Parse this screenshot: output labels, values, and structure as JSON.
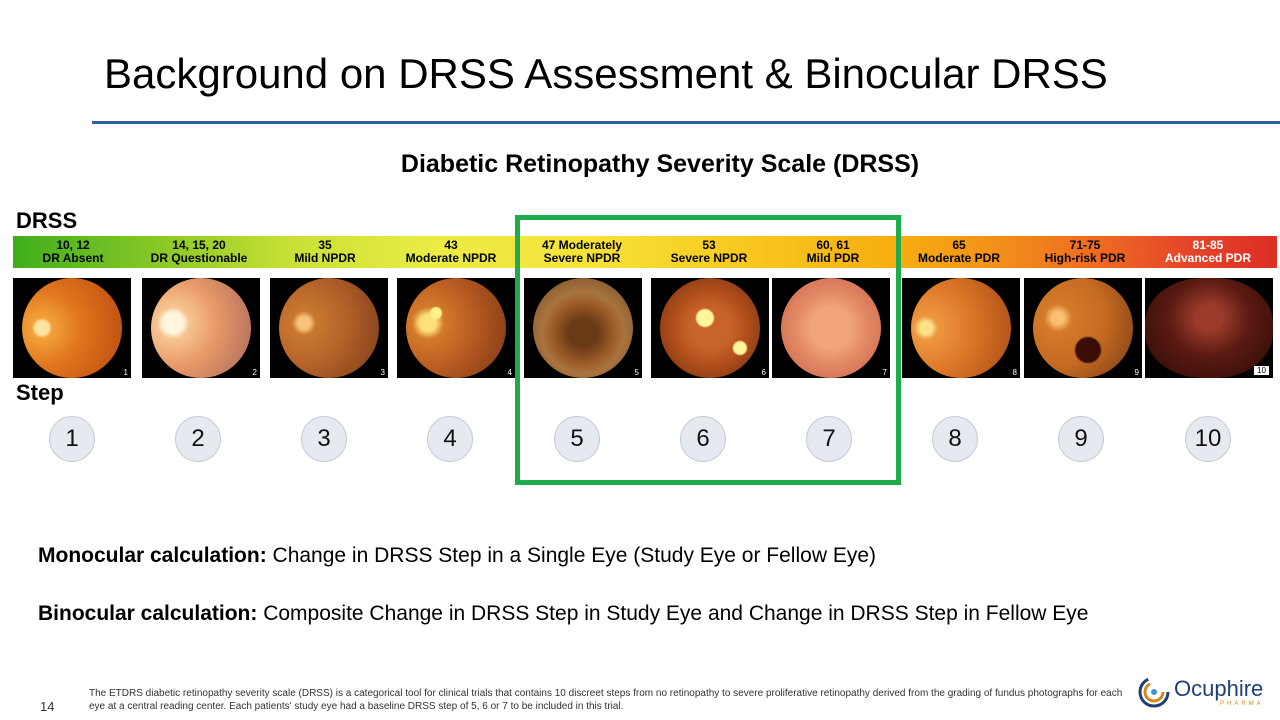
{
  "slide": {
    "title": "Background on DRSS Assessment & Binocular DRSS",
    "subtitle": "Diabetic Retinopathy Severity Scale (DRSS)",
    "drss_label": "DRSS",
    "step_label": "Step"
  },
  "scale": [
    {
      "codes": "10, 12",
      "name": "DR Absent"
    },
    {
      "codes": "14, 15, 20",
      "name": "DR Questionable"
    },
    {
      "codes": "35",
      "name": "Mild NPDR"
    },
    {
      "codes": "43",
      "name": "Moderate NPDR"
    },
    {
      "codes": "47 Moderately",
      "name": "Severe NPDR"
    },
    {
      "codes": "53",
      "name": "Severe NPDR"
    },
    {
      "codes": "60, 61",
      "name": "Mild PDR"
    },
    {
      "codes": "65",
      "name": "Moderate PDR"
    },
    {
      "codes": "71-75",
      "name": "High-risk PDR"
    },
    {
      "codes": "81-85",
      "name": "Advanced PDR"
    }
  ],
  "image_numbers": [
    "1",
    "2",
    "3",
    "4",
    "5",
    "6",
    "7",
    "8",
    "9",
    "10"
  ],
  "steps": [
    "1",
    "2",
    "3",
    "4",
    "5",
    "6",
    "7",
    "8",
    "9",
    "10"
  ],
  "highlighted_steps": [
    "5",
    "6",
    "7"
  ],
  "highlight_color": "#1fab4b",
  "calculations": {
    "monocular_label": "Monocular calculation:",
    "monocular_text": " Change in DRSS Step in a Single Eye (Study Eye or Fellow Eye)",
    "binocular_label": "Binocular calculation:",
    "binocular_text": " Composite Change in DRSS Step in Study Eye and Change in DRSS Step in Fellow Eye"
  },
  "footer": {
    "page_number": "14",
    "footnote": "The ETDRS diabetic retinopathy severity scale (DRSS) is a categorical tool for clinical trials that contains 10 discreet steps from no retinopathy to severe proliferative retinopathy derived from the grading of fundus photographs for each eye at a central reading center. Each patients' study eye had a baseline DRSS step of 5, 6 or 7 to be included in this trial.",
    "logo_text": "Ocuphire",
    "logo_subtext": "PHARMA"
  },
  "colors": {
    "title_rule": "#2e5fa3",
    "logo_blue": "#1e3f78",
    "logo_orange": "#d48a1a"
  }
}
